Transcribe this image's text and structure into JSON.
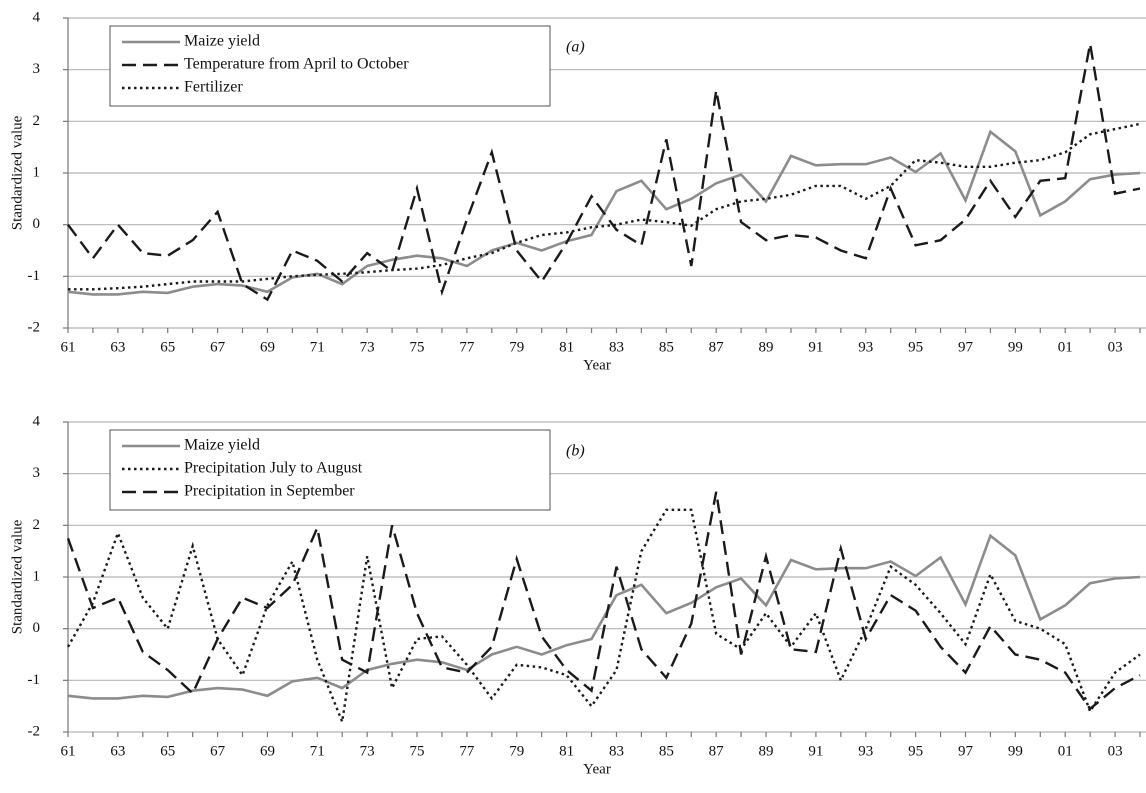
{
  "chart_data": [
    {
      "type": "line",
      "panel_label": "(a)",
      "y_label": "Standardized value",
      "x_label": "Year",
      "categories": [
        "61",
        null,
        "63",
        null,
        "65",
        null,
        "67",
        null,
        "69",
        null,
        "71",
        null,
        "73",
        null,
        "75",
        null,
        "77",
        null,
        "79",
        null,
        "81",
        null,
        "83",
        null,
        "85",
        null,
        "87",
        null,
        "89",
        null,
        "91",
        null,
        "93",
        null,
        "95",
        null,
        "97",
        null,
        "99",
        null,
        "01",
        null,
        "03",
        null
      ],
      "series": [
        {
          "name": "Maize yield",
          "color": "#8c8c8c",
          "dash": "solid",
          "values": [
            -1.3,
            -1.35,
            -1.35,
            -1.3,
            -1.32,
            -1.2,
            -1.15,
            -1.18,
            -1.3,
            -1.02,
            -0.95,
            -1.15,
            -0.8,
            -0.68,
            -0.6,
            -0.65,
            -0.8,
            -0.5,
            -0.35,
            -0.5,
            -0.32,
            -0.2,
            0.65,
            0.85,
            0.3,
            0.5,
            0.8,
            0.97,
            0.45,
            1.33,
            1.15,
            1.17,
            1.17,
            1.3,
            1.02,
            1.38,
            0.47,
            1.8,
            1.42,
            0.18,
            0.45,
            0.88,
            0.97,
            1.0
          ]
        },
        {
          "name": "Temperature from April to October",
          "color": "#1a1a1a",
          "dash": "dashed",
          "values": [
            0,
            -0.65,
            0,
            -0.55,
            -0.6,
            -0.3,
            0.25,
            -1.15,
            -1.45,
            -0.5,
            -0.7,
            -1.1,
            -0.55,
            -0.9,
            0.7,
            -1.3,
            0.1,
            1.4,
            -0.5,
            -1.1,
            -0.35,
            0.55,
            -0.1,
            -0.4,
            1.65,
            -0.8,
            2.6,
            0.05,
            -0.3,
            -0.2,
            -0.25,
            -0.5,
            -0.65,
            0.7,
            -0.4,
            -0.3,
            0.1,
            0.85,
            0.15,
            0.85,
            0.9,
            3.5,
            0.6,
            0.7
          ]
        },
        {
          "name": "Fertilizer",
          "color": "#1a1a1a",
          "dash": "dotted",
          "values": [
            -1.25,
            -1.25,
            -1.23,
            -1.2,
            -1.15,
            -1.1,
            -1.1,
            -1.1,
            -1.05,
            -1.0,
            -0.97,
            -0.95,
            -0.92,
            -0.88,
            -0.85,
            -0.78,
            -0.65,
            -0.55,
            -0.35,
            -0.2,
            -0.15,
            -0.05,
            0.0,
            0.1,
            0.05,
            -0.02,
            0.3,
            0.45,
            0.5,
            0.58,
            0.75,
            0.75,
            0.5,
            0.75,
            1.25,
            1.2,
            1.12,
            1.12,
            1.2,
            1.25,
            1.4,
            1.75,
            1.85,
            1.95
          ]
        }
      ],
      "ylim": [
        -2,
        4
      ],
      "yticks": [
        -2,
        -1,
        0,
        1,
        2,
        3,
        4
      ],
      "grid": true,
      "legend": "upper left"
    },
    {
      "type": "line",
      "panel_label": "(b)",
      "y_label": "Standardized value",
      "x_label": "Year",
      "categories": [
        "61",
        null,
        "63",
        null,
        "65",
        null,
        "67",
        null,
        "69",
        null,
        "71",
        null,
        "73",
        null,
        "75",
        null,
        "77",
        null,
        "79",
        null,
        "81",
        null,
        "83",
        null,
        "85",
        null,
        "87",
        null,
        "89",
        null,
        "91",
        null,
        "93",
        null,
        "95",
        null,
        "97",
        null,
        "99",
        null,
        "01",
        null,
        "03",
        null
      ],
      "series": [
        {
          "name": "Maize yield",
          "color": "#8c8c8c",
          "dash": "solid",
          "values": [
            -1.3,
            -1.35,
            -1.35,
            -1.3,
            -1.32,
            -1.2,
            -1.15,
            -1.18,
            -1.3,
            -1.02,
            -0.95,
            -1.15,
            -0.8,
            -0.68,
            -0.6,
            -0.65,
            -0.8,
            -0.5,
            -0.35,
            -0.5,
            -0.32,
            -0.2,
            0.65,
            0.85,
            0.3,
            0.5,
            0.8,
            0.97,
            0.45,
            1.33,
            1.15,
            1.17,
            1.17,
            1.3,
            1.02,
            1.38,
            0.47,
            1.8,
            1.42,
            0.18,
            0.45,
            0.88,
            0.97,
            1.0
          ]
        },
        {
          "name": "Precipitation July to August",
          "color": "#1a1a1a",
          "dash": "dotted",
          "values": [
            -0.35,
            0.5,
            1.85,
            0.6,
            0,
            1.6,
            -0.2,
            -0.9,
            0.45,
            1.3,
            -0.6,
            -1.8,
            1.4,
            -1.15,
            -0.2,
            -0.15,
            -0.7,
            -1.35,
            -0.7,
            -0.75,
            -0.9,
            -1.5,
            -0.8,
            1.5,
            2.3,
            2.3,
            -0.1,
            -0.4,
            0.3,
            -0.35,
            0.3,
            -1.0,
            0.0,
            1.2,
            0.85,
            0.3,
            -0.3,
            1.05,
            0.15,
            0.0,
            -0.3,
            -1.6,
            -0.85,
            -0.5
          ]
        },
        {
          "name": "Precipitation in September",
          "color": "#1a1a1a",
          "dash": "dashed",
          "values": [
            1.75,
            0.4,
            0.6,
            -0.45,
            -0.8,
            -1.25,
            -0.2,
            0.6,
            0.4,
            0.85,
            1.95,
            -0.6,
            -0.85,
            2.0,
            0.3,
            -0.75,
            -0.85,
            -0.35,
            1.35,
            -0.15,
            -0.8,
            -1.2,
            1.2,
            -0.4,
            -0.95,
            0.1,
            2.65,
            -0.5,
            1.4,
            -0.4,
            -0.45,
            1.55,
            -0.2,
            0.65,
            0.35,
            -0.35,
            -0.85,
            0.05,
            -0.5,
            -0.6,
            -0.85,
            -1.55,
            -1.15,
            -0.9
          ]
        }
      ],
      "ylim": [
        -2,
        4
      ],
      "yticks": [
        -2,
        -1,
        0,
        1,
        2,
        3,
        4
      ],
      "grid": true,
      "legend": "upper left"
    }
  ]
}
